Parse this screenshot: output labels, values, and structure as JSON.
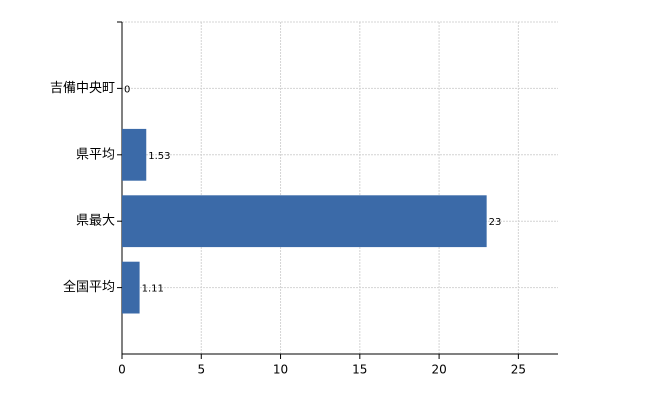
{
  "chart_data": {
    "type": "bar",
    "orientation": "horizontal",
    "categories": [
      "吉備中央町",
      "県平均",
      "県最大",
      "全国平均"
    ],
    "values": [
      0,
      1.53,
      23,
      1.11
    ],
    "color": "#3b6aa8",
    "xlim": [
      0,
      27.5
    ],
    "xticks": [
      0,
      5,
      10,
      15,
      20,
      25
    ],
    "grid": true
  }
}
